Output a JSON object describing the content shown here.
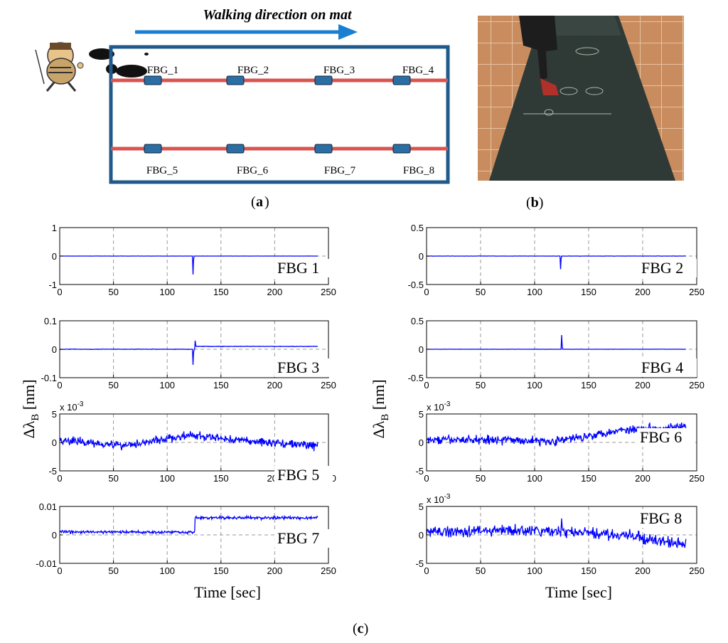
{
  "panel_a": {
    "title": "Walking direction on mat",
    "sensor_labels_top": [
      "FBG_1",
      "FBG_2",
      "FBG_3",
      "FBG_4"
    ],
    "sensor_labels_bottom": [
      "FBG_5",
      "FBG_6",
      "FBG_7",
      "FBG_8"
    ],
    "caption": "a"
  },
  "panel_b": {
    "caption": "b"
  },
  "panel_c": {
    "caption": "c",
    "ylabel_main": "Δλ",
    "ylabel_sub": "B",
    "ylabel_unit": " [nm]",
    "xlabel": "Time [sec]"
  },
  "colors": {
    "signal": "#0000ff",
    "fiber": "#d9534f",
    "mat_border": "#1f5a8a",
    "arrow": "#1a7fd1",
    "grating": "#2a6ea6"
  },
  "chart_data": [
    {
      "type": "line",
      "name": "FBG 1",
      "xlim": [
        0,
        250
      ],
      "ylim": [
        -1,
        1
      ],
      "yticks": [
        "1",
        "0",
        "-1"
      ],
      "xticks": [
        "0",
        "50",
        "100",
        "150",
        "200",
        "250"
      ],
      "baseline": 0,
      "noise": 0.002,
      "events": [
        {
          "t": 124,
          "dy": -0.65
        }
      ],
      "step": null,
      "exponent": ""
    },
    {
      "type": "line",
      "name": "FBG 2",
      "xlim": [
        0,
        250
      ],
      "ylim": [
        -0.5,
        0.5
      ],
      "yticks": [
        "0.5",
        "0",
        "-0.5"
      ],
      "xticks": [
        "0",
        "50",
        "100",
        "150",
        "200",
        "250"
      ],
      "baseline": 0,
      "noise": 0.002,
      "events": [
        {
          "t": 124,
          "dy": -0.23
        }
      ],
      "step": null,
      "exponent": ""
    },
    {
      "type": "line",
      "name": "FBG 3",
      "xlim": [
        0,
        250
      ],
      "ylim": [
        -0.1,
        0.1
      ],
      "yticks": [
        "0.1",
        "0",
        "-0.1"
      ],
      "xticks": [
        "0",
        "50",
        "100",
        "150",
        "200",
        "250"
      ],
      "baseline": 0,
      "noise": 0.0008,
      "events": [
        {
          "t": 124,
          "dy": -0.055
        },
        {
          "t": 126,
          "dy": 0.02
        }
      ],
      "step": {
        "t": 126,
        "level": 0.01
      },
      "exponent": ""
    },
    {
      "type": "line",
      "name": "FBG 4",
      "xlim": [
        0,
        250
      ],
      "ylim": [
        -0.5,
        0.5
      ],
      "yticks": [
        "0.5",
        "0",
        "-0.5"
      ],
      "xticks": [
        "0",
        "50",
        "100",
        "150",
        "200",
        "250"
      ],
      "baseline": 0,
      "noise": 0.002,
      "events": [
        {
          "t": 125,
          "dy": 0.25
        }
      ],
      "step": null,
      "exponent": ""
    },
    {
      "type": "line",
      "name": "FBG 5",
      "xlim": [
        0,
        250
      ],
      "ylim": [
        -5,
        5
      ],
      "yticks": [
        "5",
        "0",
        "-5"
      ],
      "xticks": [
        "0",
        "50",
        "100",
        "150",
        "200",
        "250"
      ],
      "baseline": 0,
      "noise": 0.7,
      "drift": [
        0.4,
        -0.5,
        1.2,
        0.2,
        -0.6
      ],
      "events": [],
      "step": null,
      "exponent": "x 10-3"
    },
    {
      "type": "line",
      "name": "FBG 6",
      "xlim": [
        0,
        250
      ],
      "ylim": [
        -5,
        5
      ],
      "yticks": [
        "5",
        "0",
        "-5"
      ],
      "xticks": [
        "0",
        "50",
        "100",
        "150",
        "200",
        "250"
      ],
      "baseline": 0,
      "noise": 0.7,
      "drift": [
        0.4,
        0.5,
        0.2,
        2.2,
        2.8
      ],
      "events": [],
      "step": null,
      "exponent": "x 10-3"
    },
    {
      "type": "line",
      "name": "FBG 7",
      "xlim": [
        0,
        250
      ],
      "ylim": [
        -0.01,
        0.01
      ],
      "yticks": [
        "0.01",
        "0",
        "-0.01"
      ],
      "xticks": [
        "0",
        "50",
        "100",
        "150",
        "200",
        "250"
      ],
      "baseline": 0.001,
      "noise": 0.0005,
      "events": [],
      "step": {
        "t": 126,
        "level": 0.006
      },
      "exponent": ""
    },
    {
      "type": "line",
      "name": "FBG 8",
      "xlim": [
        0,
        250
      ],
      "ylim": [
        -5,
        5
      ],
      "yticks": [
        "5",
        "0",
        "-5"
      ],
      "xticks": [
        "0",
        "50",
        "100",
        "150",
        "200",
        "250"
      ],
      "baseline": 0,
      "noise": 0.9,
      "drift": [
        0.5,
        0.8,
        0.6,
        0.0,
        -1.8
      ],
      "events": [
        {
          "t": 125,
          "dy": 3
        }
      ],
      "step": null,
      "exponent": "x 10-3"
    }
  ]
}
